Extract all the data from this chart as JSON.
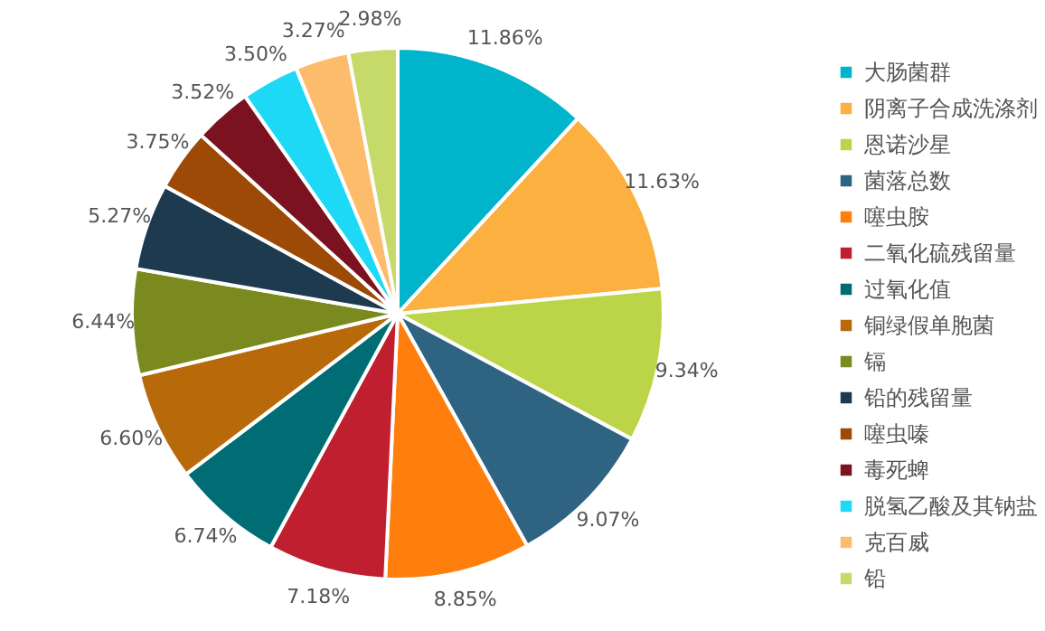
{
  "chart_data": {
    "type": "pie",
    "categories": [
      "大肠菌群",
      "阴离子合成洗涤剂",
      "恩诺沙星",
      "菌落总数",
      "噻虫胺",
      "二氧化硫残留量",
      "过氧化值",
      "铜绿假单胞菌",
      "镉",
      "铅的残留量",
      "噻虫嗪",
      "毒死蜱",
      "脱氢乙酸及其钠盐",
      "克百威",
      "铅"
    ],
    "values": [
      11.86,
      11.63,
      9.34,
      9.07,
      8.85,
      7.18,
      6.74,
      6.6,
      6.44,
      5.27,
      3.75,
      3.52,
      3.5,
      3.27,
      2.98
    ],
    "value_labels": [
      "11.86%",
      "11.63%",
      "9.34%",
      "9.07%",
      "8.85%",
      "7.18%",
      "6.74%",
      "6.60%",
      "6.44%",
      "5.27%",
      "3.75%",
      "3.52%",
      "3.50%",
      "3.27%",
      "2.98%"
    ],
    "colors": [
      "#00b4cc",
      "#fbb040",
      "#bcd548",
      "#2e6482",
      "#ff7f0e",
      "#c01f2f",
      "#006d75",
      "#b8690a",
      "#7b8a1e",
      "#1d3a4f",
      "#9c4a06",
      "#7a1220",
      "#1ed9f6",
      "#fdbc6c",
      "#c6da6a"
    ],
    "legend": "right"
  }
}
